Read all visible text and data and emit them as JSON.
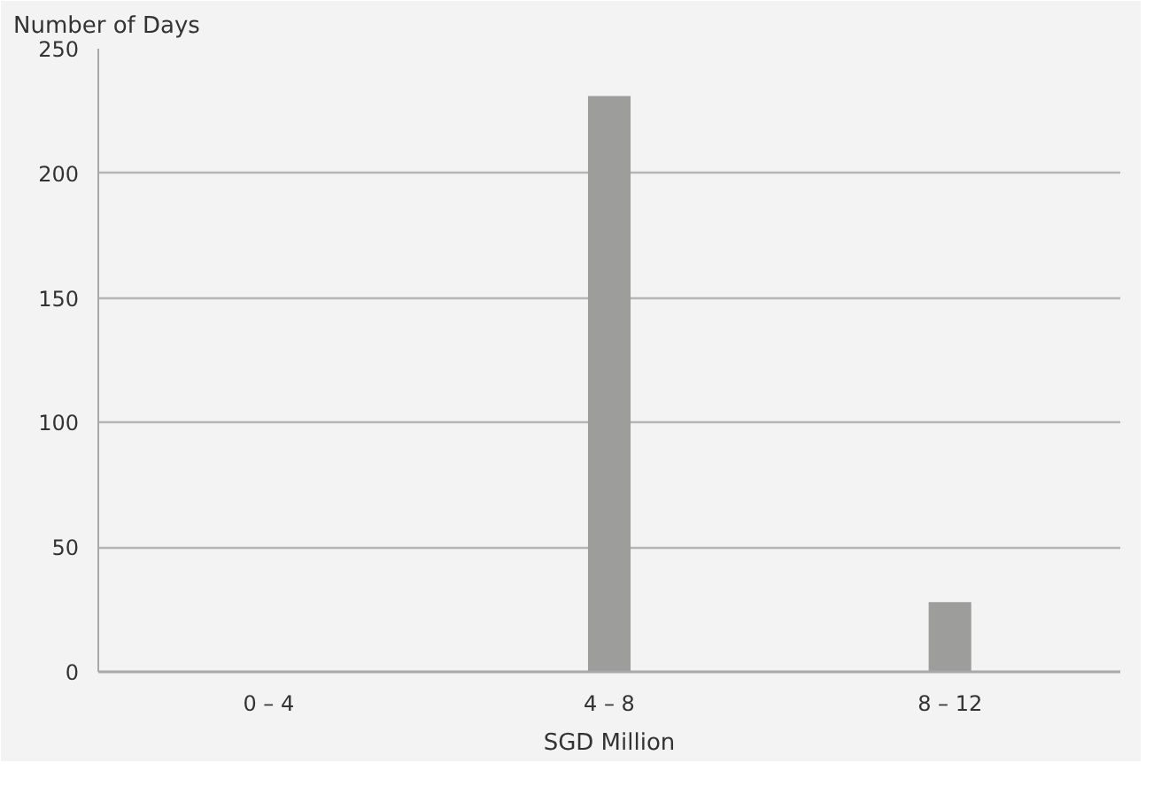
{
  "chart_data": {
    "type": "bar",
    "ylabel": "Number of Days",
    "xlabel": "SGD Million",
    "categories": [
      "0 – 4",
      "4 – 8",
      "8 – 12"
    ],
    "values": [
      0,
      231,
      28
    ],
    "color": "#9d9d9b",
    "ylim": [
      0,
      250
    ],
    "yticks": [
      0,
      50,
      100,
      150,
      200,
      250
    ],
    "grid": "y"
  }
}
